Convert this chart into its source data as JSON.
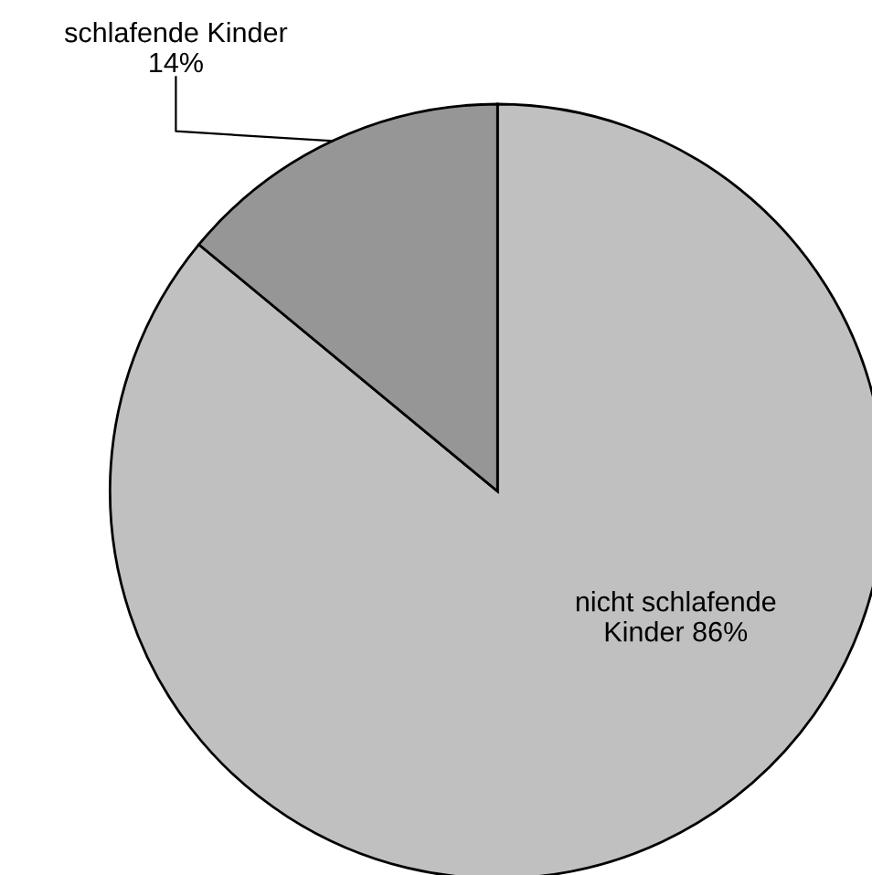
{
  "chart_data": {
    "type": "pie",
    "categories": [
      "nicht schlafende Kinder",
      "schlafende Kinder"
    ],
    "values": [
      86,
      14
    ],
    "value_labels": [
      "86%",
      "14%"
    ],
    "colors": [
      "#c0c0c0",
      "#969696"
    ]
  }
}
